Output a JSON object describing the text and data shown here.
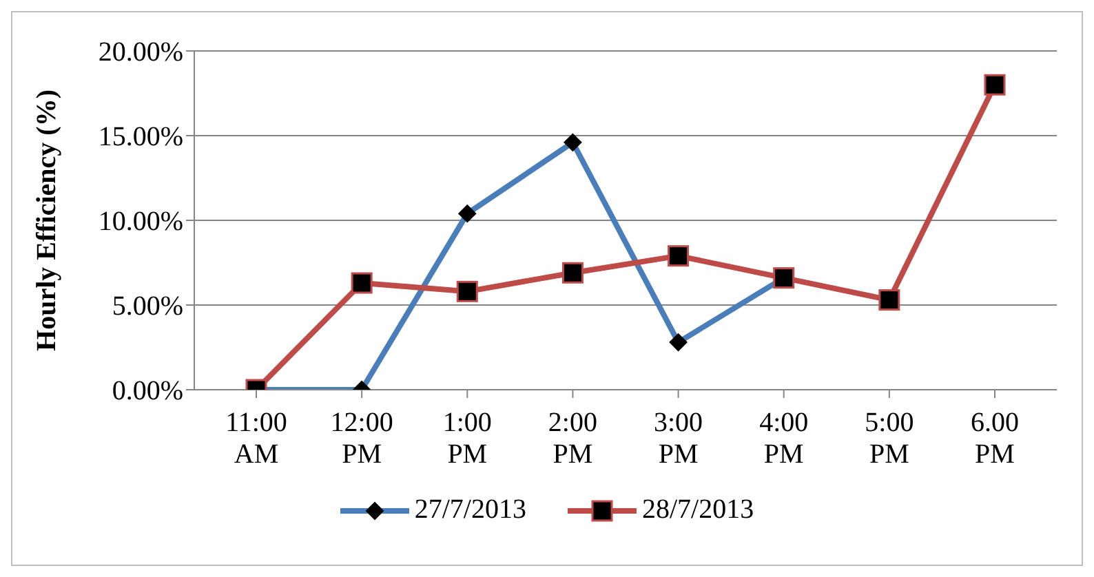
{
  "chart_data": {
    "type": "line",
    "ylabel": "Hourly Efficiency (%)",
    "categories": [
      "11:00\nAM",
      "12:00\nPM",
      "1:00\nPM",
      "2:00\nPM",
      "3:00\nPM",
      "4:00\nPM",
      "5:00\nPM",
      "6.00\nPM"
    ],
    "series": [
      {
        "name": "27/7/2013",
        "color": "#4a7ebb",
        "marker": "diamond",
        "values": [
          0,
          0,
          10.4,
          14.6,
          2.8,
          6.6,
          null,
          null
        ]
      },
      {
        "name": "28/7/2013",
        "color": "#be4b48",
        "marker": "square",
        "values": [
          0,
          6.3,
          5.8,
          6.9,
          7.9,
          6.6,
          5.3,
          18.0
        ]
      }
    ],
    "ylim": [
      0,
      20
    ],
    "yticks": [
      {
        "value": 0,
        "label": "0.00%"
      },
      {
        "value": 5,
        "label": "5.00%"
      },
      {
        "value": 10,
        "label": "10.00%"
      },
      {
        "value": 15,
        "label": "15.00%"
      },
      {
        "value": 20,
        "label": "20.00%"
      }
    ],
    "grid": "y",
    "legend": "bottom"
  }
}
